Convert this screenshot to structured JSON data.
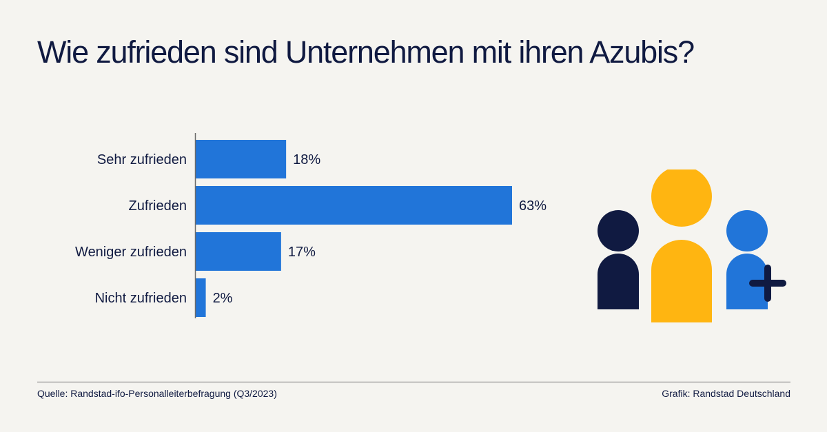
{
  "chart_data": {
    "type": "bar",
    "orientation": "horizontal",
    "title": "Wie zufrieden sind Unternehmen mit ihren Azubis?",
    "categories": [
      "Sehr zufrieden",
      "Zufrieden",
      "Weniger zufrieden",
      "Nicht zufrieden"
    ],
    "values": [
      18,
      63,
      17,
      2
    ],
    "value_labels": [
      "18%",
      "63%",
      "17%",
      "2%"
    ],
    "unit": "%",
    "xlabel": "",
    "ylabel": "",
    "xlim": [
      0,
      63
    ],
    "grid": false,
    "legend": "none",
    "bar_color": "#2175d9"
  },
  "colors": {
    "background": "#f5f4f0",
    "text": "#101a41",
    "bar": "#2175d9",
    "person_dark": "#101a41",
    "person_yellow": "#ffb511",
    "person_blue": "#2175d9",
    "plus": "#101a41"
  },
  "illustration": {
    "icon": "people-group-add-icon"
  },
  "footer": {
    "source": "Quelle: Randstad-ifo-Personalleiterbefragung (Q3/2023)",
    "credit": "Grafik: Randstad Deutschland"
  }
}
